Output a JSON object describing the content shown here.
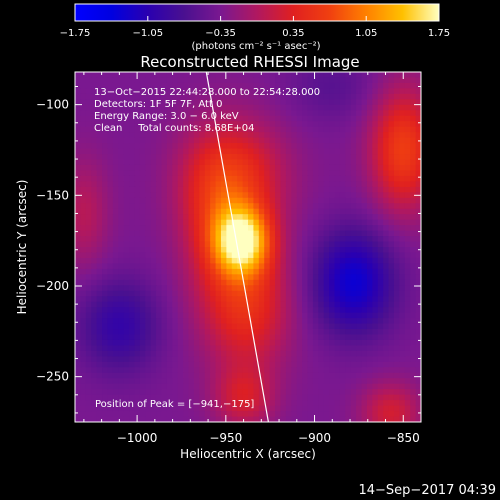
{
  "chart_data": {
    "type": "heatmap",
    "title": "Reconstructed RHESSI Image",
    "xlabel": "Heliocentric X (arcsec)",
    "ylabel": "Heliocentric Y (arcsec)",
    "xlim": [
      -1035,
      -840
    ],
    "ylim": [
      -275,
      -82
    ],
    "x_ticks": [
      -1000,
      -950,
      -900,
      -850
    ],
    "x_tick_labels": [
      "−1000",
      "−950",
      "−900",
      "−850"
    ],
    "y_ticks": [
      -100,
      -150,
      -200,
      -250
    ],
    "y_tick_labels": [
      "−100",
      "−150",
      "−200",
      "−250"
    ],
    "colorbar": {
      "min": -1.75,
      "max": 1.75,
      "ticks": [
        -1.75,
        -1.05,
        -0.35,
        0.35,
        1.05,
        1.75
      ],
      "tick_labels": [
        "−1.75",
        "−1.05",
        "−0.35",
        "0.35",
        "1.05",
        "1.75"
      ],
      "unit_label": "(photons cm⁻² s⁻¹ asec⁻²)"
    },
    "info_lines": [
      "13−Oct−2015 22:44:28.000 to 22:54:28.000",
      "Detectors: 1F 5F 7F, Att 0",
      "Energy Range: 3.0 − 6.0 keV",
      "Clean     Total counts: 8.68E+04"
    ],
    "peak_label": "Position of Peak = [−941,−175]",
    "peak": [
      -941,
      -175
    ],
    "limb_line": [
      [
        -961,
        -82
      ],
      [
        -926,
        -275
      ]
    ],
    "sources": [
      {
        "x": -941,
        "y": -175,
        "amp": 1.75,
        "sx": 11,
        "sy": 13
      },
      {
        "x": -945,
        "y": -140,
        "amp": 0.85,
        "sx": 20,
        "sy": 22
      },
      {
        "x": -938,
        "y": -210,
        "amp": 0.85,
        "sx": 17,
        "sy": 26
      },
      {
        "x": -958,
        "y": -168,
        "amp": 0.45,
        "sx": 14,
        "sy": 30
      },
      {
        "x": -940,
        "y": -262,
        "amp": 0.55,
        "sx": 12,
        "sy": 12
      },
      {
        "x": -850,
        "y": -125,
        "amp": 1.0,
        "sx": 13,
        "sy": 24
      },
      {
        "x": -857,
        "y": -270,
        "amp": 0.6,
        "sx": 12,
        "sy": 12
      },
      {
        "x": -1030,
        "y": -160,
        "amp": 0.4,
        "sx": 10,
        "sy": 22
      },
      {
        "x": -878,
        "y": -198,
        "amp": -0.95,
        "sx": 16,
        "sy": 20
      },
      {
        "x": -1010,
        "y": -222,
        "amp": -0.6,
        "sx": 16,
        "sy": 18
      },
      {
        "x": -890,
        "y": -90,
        "amp": -0.25,
        "sx": 18,
        "sy": 14
      }
    ],
    "baseline": -0.35,
    "grid": false
  },
  "footer": {
    "timestamp": "14−Sep−2017 04:39"
  }
}
